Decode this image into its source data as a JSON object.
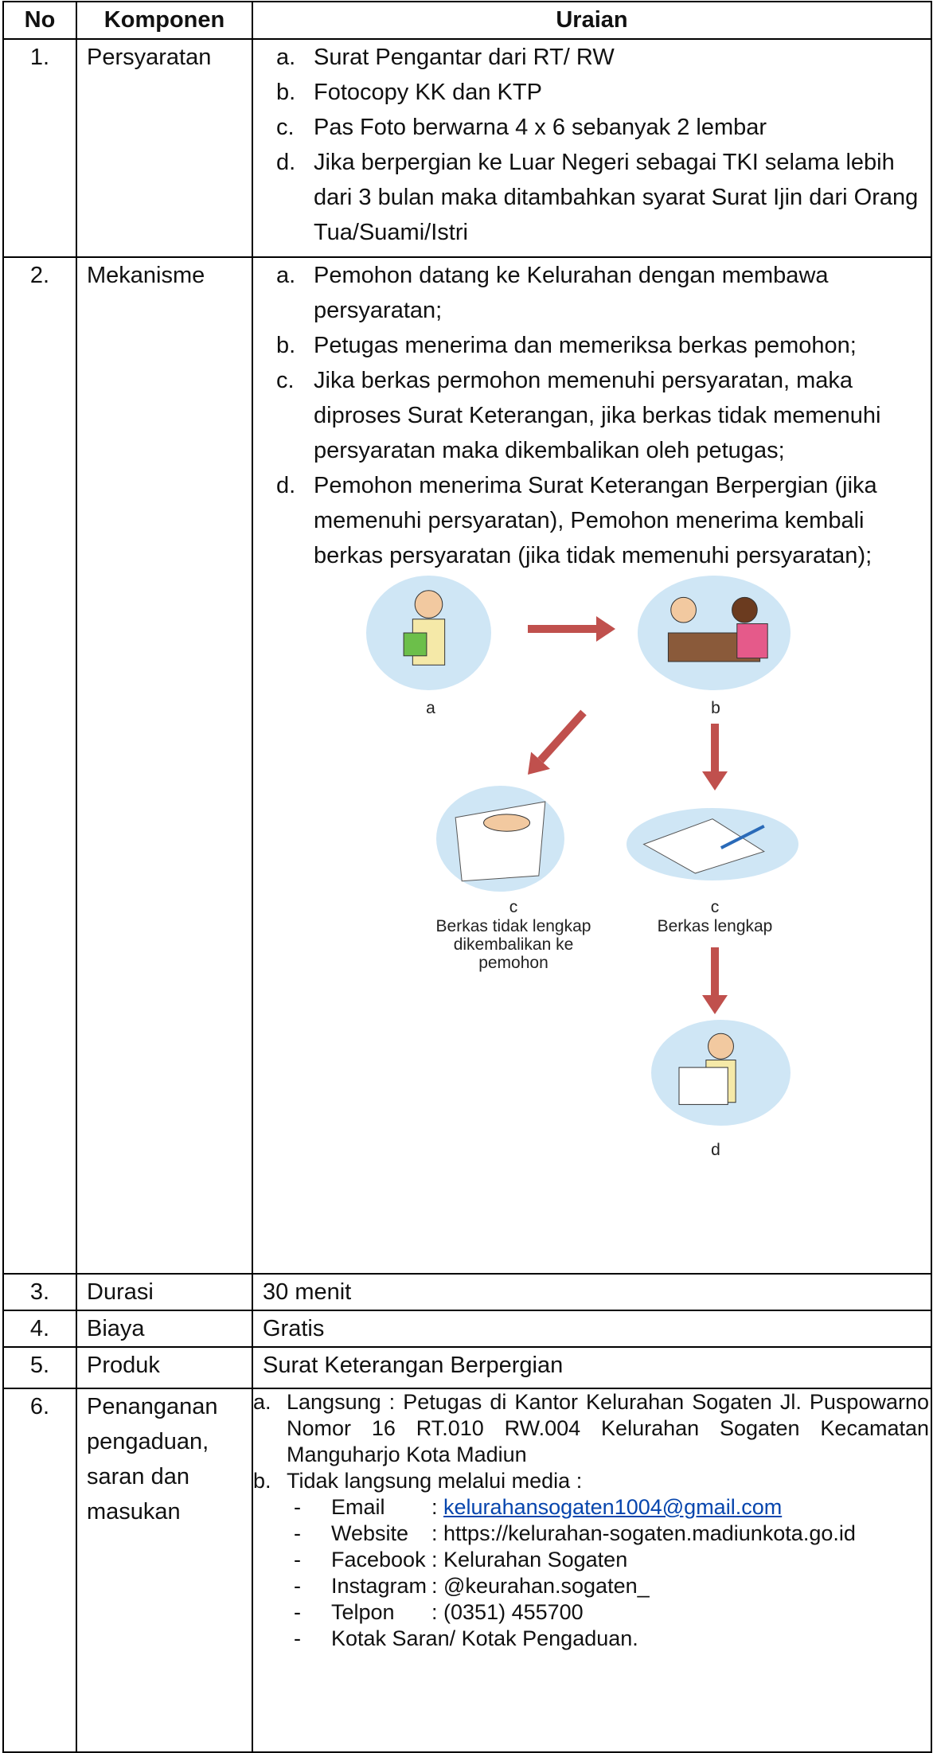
{
  "table": {
    "header": [
      "No",
      "Komponen",
      "Uraian"
    ],
    "rows": [
      {
        "no": "1.",
        "komponen": [
          "Persyaratan"
        ],
        "items": [
          {
            "marker": "a.",
            "text": "Surat Pengantar dari RT/ RW"
          },
          {
            "marker": "b.",
            "text": "Fotocopy KK dan KTP"
          },
          {
            "marker": "c.",
            "text": "Pas Foto berwarna 4 x 6 sebanyak 2 lembar"
          },
          {
            "marker": "d.",
            "text": "Jika berpergian ke Luar Negeri sebagai TKI selama lebih dari 3 bulan maka ditambahkan syarat Surat Ijin dari Orang Tua/Suami/Istri"
          }
        ]
      },
      {
        "no": "2.",
        "komponen": [
          "Mekanisme"
        ],
        "items": [
          {
            "marker": "a.",
            "text": "Pemohon datang ke Kelurahan dengan membawa persyaratan;"
          },
          {
            "marker": "b.",
            "text": "Petugas menerima dan memeriksa berkas pemohon;"
          },
          {
            "marker": "c.",
            "text": "Jika berkas permohon memenuhi persyaratan, maka diproses Surat Keterangan, jika berkas tidak memenuhi persyaratan maka dikembalikan oleh petugas;"
          },
          {
            "marker": "d.",
            "text": "Pemohon menerima Surat Keterangan Berpergian (jika memenuhi persyaratan), Pemohon menerima kembali berkas persyaratan (jika tidak memenuhi persyaratan);"
          }
        ],
        "diagram": {
          "a": "a",
          "b": "b",
          "c_left": "c",
          "c_left_caption": [
            "Berkas tidak lengkap",
            "dikembalikan ke",
            "pemohon"
          ],
          "c_right": "c",
          "c_right_caption": "Berkas lengkap",
          "d": "d"
        }
      },
      {
        "no": "3.",
        "komponen": [
          "Durasi"
        ],
        "text": "30 menit"
      },
      {
        "no": "4.",
        "komponen": [
          "Biaya"
        ],
        "text": "Gratis"
      },
      {
        "no": "5.",
        "komponen": [
          "Produk"
        ],
        "text": "Surat Keterangan Berpergian"
      },
      {
        "no": "6.",
        "komponen": [
          "Penanganan",
          "pengaduan,",
          "saran dan",
          "masukan"
        ],
        "items": [
          {
            "marker": "a.",
            "text": "Langsung : Petugas di Kantor Kelurahan Sogaten Jl. Puspowarno Nomor 16 RT.010 RW.004 Kelurahan Sogaten Kecamatan Manguharjo Kota Madiun"
          },
          {
            "marker": "b.",
            "text": "Tidak langsung melalui media :",
            "sub": [
              {
                "marker": "-",
                "label": "Email",
                "colon": ":",
                "link": "kelurahansogaten1004@gmail.com"
              },
              {
                "marker": "-",
                "label": "Website",
                "colon": ":",
                "value": "https://kelurahan-sogaten.madiunkota.go.id"
              },
              {
                "marker": "-",
                "label": "Facebook",
                "colon": ":",
                "value": "Kelurahan Sogaten"
              },
              {
                "marker": "-",
                "label": "Instagram",
                "colon": ":",
                "value": "@keurahan.sogaten_"
              },
              {
                "marker": "-",
                "label": "Telpon",
                "colon": ":",
                "value": "(0351) 455700"
              },
              {
                "marker": "-",
                "label": "Kotak Saran/ Kotak Pengaduan."
              }
            ]
          }
        ]
      }
    ]
  }
}
